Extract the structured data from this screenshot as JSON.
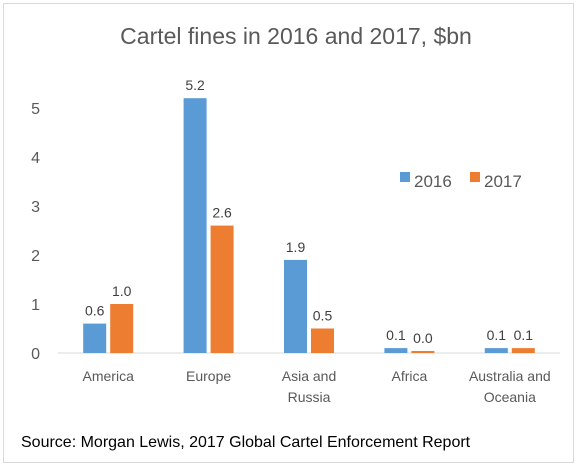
{
  "chart_data": {
    "type": "bar",
    "title": "Cartel fines in 2016 and 2017, $bn",
    "categories": [
      [
        "America"
      ],
      [
        "Europe"
      ],
      [
        "Asia and",
        "Russia"
      ],
      [
        "Africa"
      ],
      [
        "Australia and",
        "Oceania"
      ]
    ],
    "series": [
      {
        "name": "2016",
        "color": "#5b9bd5",
        "values": [
          0.6,
          5.2,
          1.9,
          0.1,
          0.1
        ]
      },
      {
        "name": "2017",
        "color": "#ed7d31",
        "values": [
          1.0,
          2.6,
          0.5,
          0.0,
          0.1
        ]
      }
    ],
    "ylim": [
      0,
      5.5
    ],
    "yticks": [
      0,
      1,
      2,
      3,
      4,
      5
    ],
    "grid": false,
    "legend_position": "right",
    "xlabel": "",
    "ylabel": ""
  },
  "source": "Source: Morgan Lewis, 2017 Global Cartel Enforcement Report"
}
